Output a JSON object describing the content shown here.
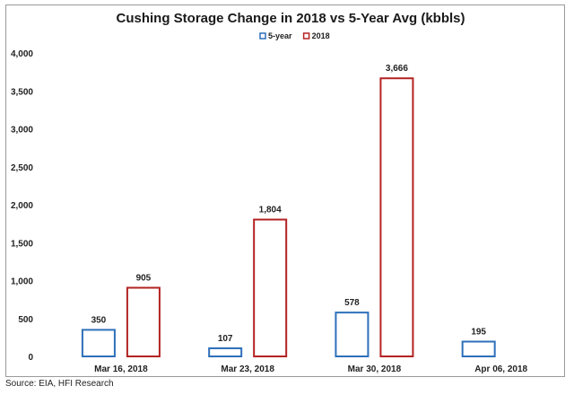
{
  "source_note": "Source: EIA, HFI Research",
  "chart_data": {
    "type": "bar",
    "title": "Cushing Storage Change in 2018 vs 5-Year Avg (kbbls)",
    "categories": [
      "Mar 16, 2018",
      "Mar 23, 2018",
      "Mar 30, 2018",
      "Apr 06, 2018"
    ],
    "series": [
      {
        "name": "5-year",
        "values": [
          350,
          107,
          578,
          195
        ],
        "color": "#2e6fba"
      },
      {
        "name": "2018",
        "values": [
          905,
          1804,
          3666,
          null
        ],
        "color": "#b52222"
      }
    ],
    "data_labels": [
      [
        "350",
        "107",
        "578",
        "195"
      ],
      [
        "905",
        "1,804",
        "3,666",
        ""
      ]
    ],
    "ylim": [
      0,
      4000
    ],
    "yticks": [
      0,
      500,
      1000,
      1500,
      2000,
      2500,
      3000,
      3500,
      4000
    ],
    "ytick_labels": [
      "0",
      "500",
      "1,000",
      "1,500",
      "2,000",
      "2,500",
      "3,000",
      "3,500",
      "4,000"
    ],
    "bar_style": "outline",
    "legend_position": "top-center",
    "grid": false
  }
}
